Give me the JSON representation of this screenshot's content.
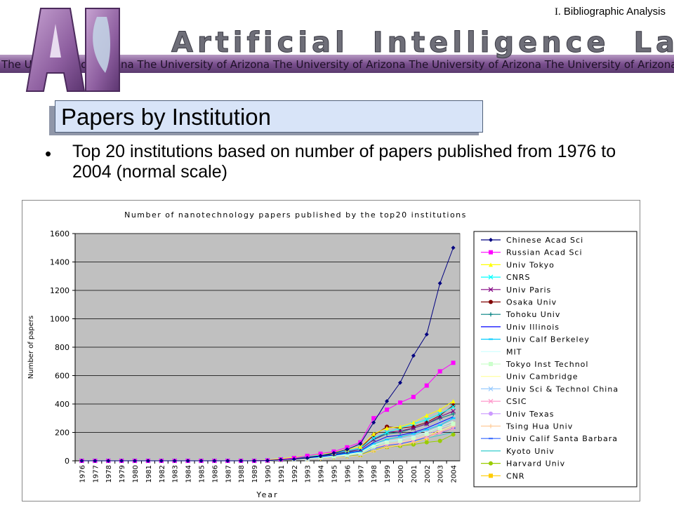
{
  "header": {
    "logo_text": "AI",
    "lab_title_words": [
      "Artificial",
      "Intelligence",
      "Lab"
    ],
    "banner_text": "The University of Arizona The University of Arizona The University of Arizona The University of Arizona The University of Arizona",
    "section_roman": "I.",
    "section_label": "Bibliographic Analysis",
    "colors": {
      "banner": "#7a5a8c",
      "logo": "#9b6fa8",
      "title": "#6e6e78"
    }
  },
  "slide": {
    "title": "Papers by Institution",
    "bullet_symbol": "•",
    "bullet": "Top 20 institutions based on number of papers published from 1976 to 2004 (normal scale)"
  },
  "chart_data": {
    "type": "line",
    "title": "Number of nanotechnology papers published by the top20 institutions",
    "xlabel": "Year",
    "ylabel": "Number of papers",
    "ylim": [
      0,
      1600
    ],
    "yticks": [
      "0",
      "200",
      "400",
      "600",
      "800",
      "1000",
      "1200",
      "1400",
      "1600"
    ],
    "grid": "horizontal",
    "plot_background": "#c0c0c0",
    "legend_position": "right",
    "x": [
      "1976",
      "1977",
      "1978",
      "1979",
      "1980",
      "1981",
      "1982",
      "1983",
      "1984",
      "1985",
      "1986",
      "1987",
      "1988",
      "1989",
      "1990",
      "1991",
      "1992",
      "1993",
      "1994",
      "1995",
      "1996",
      "1997",
      "1998",
      "1999",
      "2000",
      "2001",
      "2002",
      "2003",
      "2004"
    ],
    "series": [
      {
        "name": "Chinese Acad Sci",
        "color": "#000080",
        "marker": "diamond",
        "values": [
          0,
          0,
          0,
          0,
          0,
          0,
          0,
          0,
          0,
          0,
          0,
          0,
          0,
          0,
          2,
          8,
          12,
          20,
          35,
          55,
          80,
          120,
          270,
          420,
          550,
          740,
          890,
          1250,
          1500
        ]
      },
      {
        "name": "Russian Acad Sci",
        "color": "#ff00ff",
        "marker": "square",
        "values": [
          0,
          0,
          0,
          0,
          0,
          0,
          0,
          0,
          0,
          0,
          0,
          0,
          0,
          0,
          3,
          10,
          20,
          35,
          50,
          65,
          95,
          130,
          300,
          360,
          410,
          450,
          530,
          630,
          690
        ]
      },
      {
        "name": "Univ Tokyo",
        "color": "#ffff00",
        "marker": "triangle",
        "values": [
          0,
          0,
          0,
          0,
          0,
          0,
          0,
          0,
          0,
          0,
          0,
          0,
          0,
          0,
          5,
          15,
          25,
          35,
          45,
          60,
          80,
          100,
          190,
          230,
          240,
          270,
          320,
          360,
          420
        ]
      },
      {
        "name": "CNRS",
        "color": "#00ffff",
        "marker": "x",
        "values": [
          0,
          0,
          0,
          0,
          0,
          0,
          0,
          0,
          0,
          0,
          0,
          0,
          0,
          0,
          4,
          12,
          20,
          30,
          40,
          55,
          70,
          90,
          160,
          200,
          230,
          260,
          290,
          330,
          380
        ]
      },
      {
        "name": "Univ Paris",
        "color": "#800080",
        "marker": "x",
        "values": [
          0,
          0,
          0,
          0,
          0,
          0,
          0,
          0,
          0,
          0,
          0,
          0,
          0,
          0,
          3,
          10,
          18,
          28,
          40,
          50,
          65,
          80,
          150,
          200,
          210,
          230,
          260,
          310,
          350
        ]
      },
      {
        "name": "Osaka Univ",
        "color": "#800000",
        "marker": "circle",
        "values": [
          0,
          0,
          0,
          0,
          0,
          0,
          0,
          0,
          0,
          0,
          0,
          0,
          0,
          0,
          3,
          10,
          18,
          25,
          35,
          50,
          70,
          90,
          180,
          240,
          230,
          240,
          270,
          320,
          390
        ]
      },
      {
        "name": "Tohoku Univ",
        "color": "#008080",
        "marker": "plus",
        "values": [
          0,
          0,
          0,
          0,
          0,
          0,
          0,
          0,
          0,
          0,
          0,
          0,
          0,
          0,
          3,
          10,
          15,
          25,
          35,
          45,
          60,
          80,
          150,
          190,
          200,
          230,
          260,
          300,
          330
        ]
      },
      {
        "name": "Univ Illinois",
        "color": "#0000ff",
        "marker": "none",
        "values": [
          0,
          0,
          0,
          0,
          0,
          0,
          0,
          0,
          0,
          0,
          0,
          0,
          0,
          0,
          2,
          8,
          15,
          22,
          30,
          40,
          55,
          70,
          130,
          170,
          180,
          200,
          230,
          270,
          310
        ]
      },
      {
        "name": "Univ Calf Berkeley",
        "color": "#00ccff",
        "marker": "dash",
        "values": [
          0,
          0,
          0,
          0,
          0,
          0,
          0,
          0,
          0,
          0,
          0,
          0,
          0,
          0,
          2,
          8,
          14,
          20,
          28,
          38,
          50,
          65,
          120,
          150,
          170,
          190,
          220,
          250,
          300
        ]
      },
      {
        "name": "MIT",
        "color": "#ccffff",
        "marker": "none",
        "values": [
          0,
          0,
          0,
          0,
          0,
          0,
          0,
          0,
          0,
          0,
          0,
          0,
          0,
          0,
          2,
          7,
          12,
          18,
          25,
          35,
          45,
          60,
          110,
          140,
          150,
          170,
          200,
          240,
          280
        ]
      },
      {
        "name": "Tokyo Inst Technol",
        "color": "#ccffcc",
        "marker": "square",
        "values": [
          0,
          0,
          0,
          0,
          0,
          0,
          0,
          0,
          0,
          0,
          0,
          0,
          0,
          0,
          2,
          7,
          12,
          18,
          25,
          33,
          44,
          58,
          105,
          130,
          140,
          160,
          190,
          230,
          260
        ]
      },
      {
        "name": "Univ Cambridge",
        "color": "#ffff99",
        "marker": "none",
        "values": [
          0,
          0,
          0,
          0,
          0,
          0,
          0,
          0,
          0,
          0,
          0,
          0,
          0,
          0,
          2,
          6,
          10,
          16,
          22,
          30,
          40,
          52,
          95,
          120,
          130,
          150,
          180,
          210,
          250
        ]
      },
      {
        "name": "Univ Sci & Technol China",
        "color": "#99ccff",
        "marker": "x",
        "values": [
          0,
          0,
          0,
          0,
          0,
          0,
          0,
          0,
          0,
          0,
          0,
          0,
          0,
          0,
          1,
          5,
          8,
          12,
          18,
          25,
          35,
          50,
          90,
          130,
          150,
          180,
          220,
          270,
          300
        ]
      },
      {
        "name": "CSIC",
        "color": "#ff99cc",
        "marker": "x",
        "values": [
          0,
          0,
          0,
          0,
          0,
          0,
          0,
          0,
          0,
          0,
          0,
          0,
          0,
          0,
          1,
          5,
          9,
          14,
          20,
          28,
          38,
          50,
          90,
          115,
          125,
          145,
          170,
          200,
          230
        ]
      },
      {
        "name": "Univ Texas",
        "color": "#cc99ff",
        "marker": "circle",
        "values": [
          0,
          0,
          0,
          0,
          0,
          0,
          0,
          0,
          0,
          0,
          0,
          0,
          0,
          0,
          2,
          6,
          10,
          15,
          22,
          30,
          40,
          52,
          95,
          120,
          135,
          155,
          185,
          220,
          260
        ]
      },
      {
        "name": "Tsing Hua Univ",
        "color": "#ffcc99",
        "marker": "plus",
        "values": [
          0,
          0,
          0,
          0,
          0,
          0,
          0,
          0,
          0,
          0,
          0,
          0,
          0,
          0,
          1,
          4,
          7,
          10,
          15,
          20,
          28,
          38,
          70,
          95,
          110,
          130,
          160,
          200,
          240
        ]
      },
      {
        "name": "Univ Calif Santa Barbara",
        "color": "#3366ff",
        "marker": "dash",
        "values": [
          0,
          0,
          0,
          0,
          0,
          0,
          0,
          0,
          0,
          0,
          0,
          0,
          0,
          0,
          2,
          6,
          10,
          14,
          20,
          27,
          36,
          48,
          85,
          110,
          120,
          140,
          165,
          195,
          230
        ]
      },
      {
        "name": "Kyoto Univ",
        "color": "#33cccc",
        "marker": "none",
        "values": [
          0,
          0,
          0,
          0,
          0,
          0,
          0,
          0,
          0,
          0,
          0,
          0,
          0,
          0,
          2,
          7,
          12,
          18,
          25,
          32,
          42,
          55,
          100,
          120,
          125,
          140,
          160,
          180,
          200
        ]
      },
      {
        "name": "Harvard Univ",
        "color": "#99cc00",
        "marker": "circle",
        "values": [
          0,
          0,
          0,
          0,
          0,
          0,
          0,
          0,
          0,
          0,
          0,
          0,
          0,
          0,
          1,
          4,
          8,
          12,
          18,
          24,
          32,
          42,
          75,
          95,
          105,
          115,
          130,
          140,
          185
        ]
      },
      {
        "name": "CNR",
        "color": "#ffcc00",
        "marker": "square",
        "values": [
          0,
          0,
          0,
          0,
          0,
          0,
          0,
          0,
          0,
          0,
          0,
          0,
          0,
          0,
          1,
          5,
          9,
          13,
          18,
          24,
          32,
          42,
          75,
          100,
          110,
          125,
          160,
          220,
          260
        ]
      }
    ]
  }
}
